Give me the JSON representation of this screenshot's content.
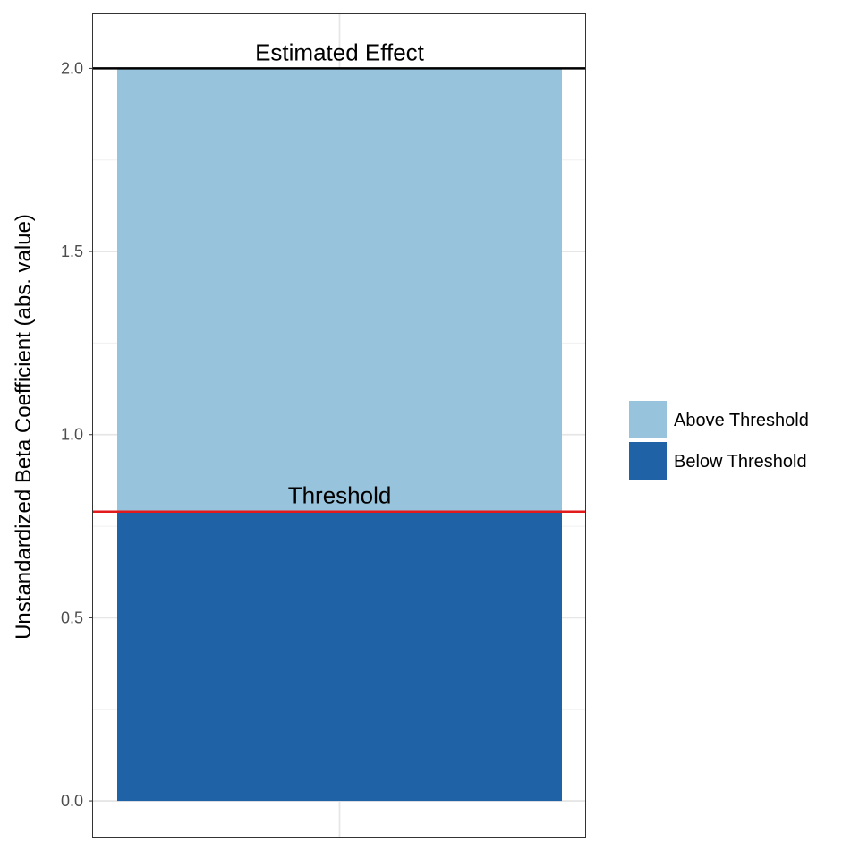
{
  "chart_data": {
    "type": "bar",
    "stacked": true,
    "title": "",
    "xlabel": "",
    "ylabel": "Unstandardized Beta Coefficient (abs. value)",
    "ylim": [
      -0.1,
      2.15
    ],
    "yticks": [
      0.0,
      0.5,
      1.0,
      1.5,
      2.0
    ],
    "ytick_labels": [
      "0.0",
      "0.5",
      "1.0",
      "1.5",
      "2.0"
    ],
    "grid": true,
    "legend_position": "right",
    "categories": [
      ""
    ],
    "series": [
      {
        "name": "Below Threshold",
        "values": [
          0.79
        ],
        "color": "#1f63a6"
      },
      {
        "name": "Above Threshold",
        "values": [
          1.21
        ],
        "color": "#97c3dc"
      }
    ],
    "reference_lines": [
      {
        "label": "Estimated Effect",
        "y": 2.0,
        "color": "#000000"
      },
      {
        "label": "Threshold",
        "y": 0.79,
        "color": "#e31a1c"
      }
    ],
    "legend": [
      {
        "label": "Above Threshold",
        "color": "#97c3dc"
      },
      {
        "label": "Below Threshold",
        "color": "#1f63a6"
      }
    ]
  }
}
